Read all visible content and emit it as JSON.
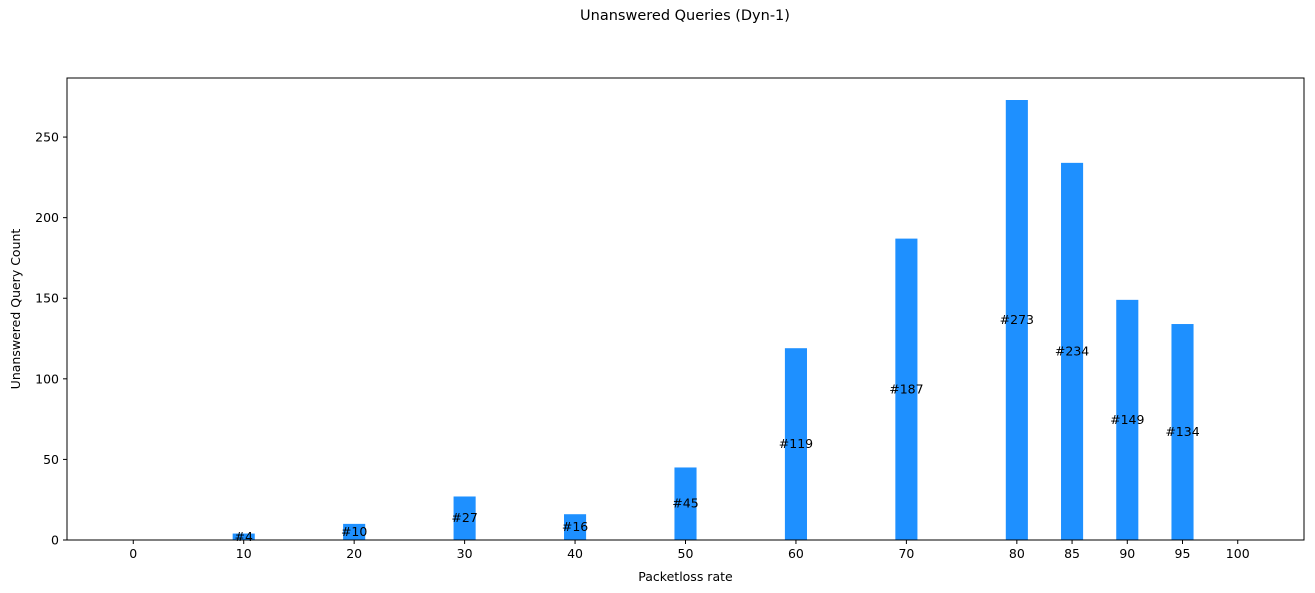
{
  "chart_data": {
    "type": "bar",
    "title": "Unanswered Queries (Dyn-1)",
    "xlabel": "Packetloss rate",
    "ylabel": "Unanswered Query Count",
    "x_ticks": [
      0,
      10,
      20,
      30,
      40,
      50,
      60,
      70,
      80,
      85,
      90,
      95,
      100
    ],
    "categories": [
      0,
      10,
      20,
      30,
      40,
      50,
      60,
      70,
      80,
      85,
      90,
      95,
      100
    ],
    "values": [
      0,
      4,
      10,
      27,
      16,
      45,
      119,
      187,
      273,
      234,
      149,
      134,
      0
    ],
    "data_labels": [
      "",
      "#4",
      "#10",
      "#27",
      "#16",
      "#45",
      "#119",
      "#187",
      "#273",
      "#234",
      "#149",
      "#134",
      ""
    ],
    "y_ticks": [
      0,
      50,
      100,
      150,
      200,
      250
    ],
    "xlim": [
      -6,
      106
    ],
    "ylim": [
      0,
      286.65
    ],
    "bar_width": 2,
    "bar_color": "#1e90ff",
    "grid": false,
    "legend": "none"
  }
}
